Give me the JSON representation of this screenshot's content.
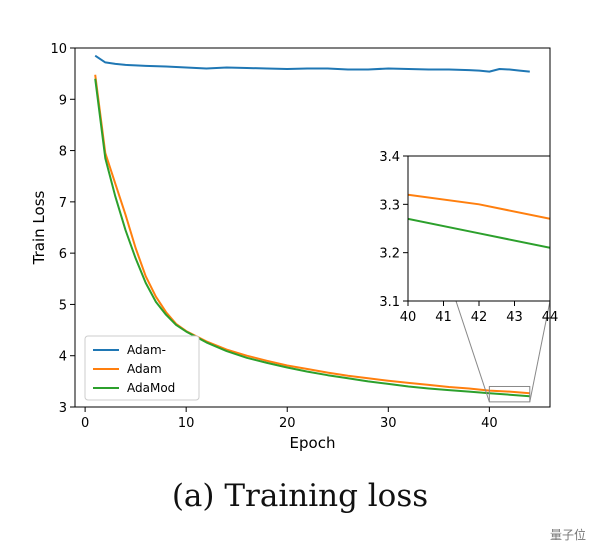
{
  "caption": "(a) Training loss",
  "watermark": "量子位",
  "chart_data": {
    "type": "line",
    "xlabel": "Epoch",
    "ylabel": "Train Loss",
    "xlim": [
      -1,
      46
    ],
    "ylim": [
      3,
      10
    ],
    "xticks": [
      0,
      10,
      20,
      30,
      40
    ],
    "yticks": [
      3,
      4,
      5,
      6,
      7,
      8,
      9,
      10
    ],
    "legend_position": "lower-left",
    "grid": false,
    "series": [
      {
        "name": "Adam-",
        "color": "#1f77b4",
        "x": [
          1,
          2,
          3,
          4,
          5,
          6,
          8,
          10,
          12,
          14,
          16,
          18,
          20,
          22,
          24,
          26,
          28,
          30,
          32,
          34,
          36,
          38,
          39,
          40,
          41,
          42,
          43,
          44
        ],
        "y": [
          9.85,
          9.72,
          9.69,
          9.67,
          9.66,
          9.65,
          9.64,
          9.62,
          9.6,
          9.62,
          9.61,
          9.6,
          9.59,
          9.6,
          9.6,
          9.58,
          9.58,
          9.6,
          9.59,
          9.58,
          9.58,
          9.57,
          9.56,
          9.54,
          9.59,
          9.58,
          9.56,
          9.54
        ]
      },
      {
        "name": "Adam",
        "color": "#ff7f0e",
        "x": [
          1,
          2,
          3,
          4,
          5,
          6,
          7,
          8,
          9,
          10,
          12,
          14,
          16,
          18,
          20,
          22,
          24,
          26,
          28,
          30,
          32,
          34,
          36,
          38,
          40,
          42,
          44
        ],
        "y": [
          9.48,
          7.95,
          7.35,
          6.75,
          6.1,
          5.55,
          5.15,
          4.85,
          4.62,
          4.48,
          4.28,
          4.12,
          4.0,
          3.9,
          3.81,
          3.74,
          3.67,
          3.61,
          3.56,
          3.51,
          3.47,
          3.43,
          3.39,
          3.36,
          3.32,
          3.3,
          3.27
        ]
      },
      {
        "name": "AdaMod",
        "color": "#2ca02c",
        "x": [
          1,
          2,
          3,
          4,
          5,
          6,
          7,
          8,
          9,
          10,
          12,
          14,
          16,
          18,
          20,
          22,
          24,
          26,
          28,
          30,
          32,
          34,
          36,
          38,
          40,
          42,
          44
        ],
        "y": [
          9.4,
          7.85,
          7.1,
          6.45,
          5.9,
          5.42,
          5.05,
          4.8,
          4.6,
          4.47,
          4.26,
          4.09,
          3.96,
          3.86,
          3.77,
          3.69,
          3.62,
          3.56,
          3.5,
          3.45,
          3.4,
          3.36,
          3.33,
          3.3,
          3.27,
          3.24,
          3.21
        ]
      }
    ],
    "inset": {
      "xlim": [
        40,
        44
      ],
      "ylim": [
        3.1,
        3.4
      ],
      "xticks": [
        40,
        41,
        42,
        43,
        44
      ],
      "yticks": [
        3.1,
        3.2,
        3.3,
        3.4
      ]
    }
  }
}
